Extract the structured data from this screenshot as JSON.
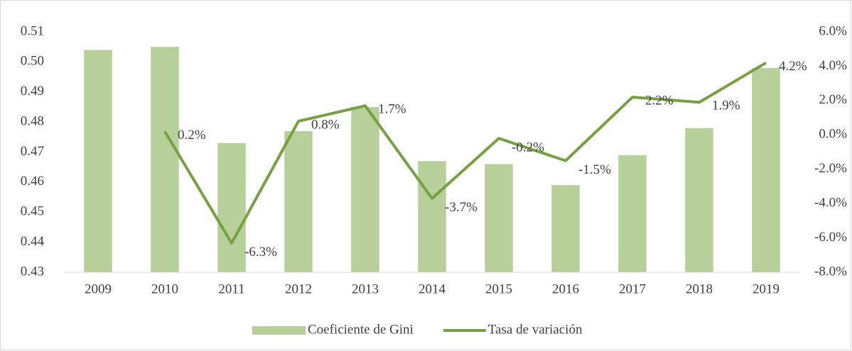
{
  "chart_data": {
    "type": "bar",
    "categories": [
      "2009",
      "2010",
      "2011",
      "2012",
      "2013",
      "2014",
      "2015",
      "2016",
      "2017",
      "2018",
      "2019"
    ],
    "series": [
      {
        "name": "Coeficiente de Gini",
        "type": "bar",
        "color": "#b7d099",
        "values": [
          0.504,
          0.505,
          0.473,
          0.477,
          0.485,
          0.467,
          0.466,
          0.459,
          0.469,
          0.478,
          0.498
        ]
      },
      {
        "name": "Tasa de variación",
        "type": "line",
        "axis": "y2",
        "color": "#77a043",
        "values": [
          null,
          0.2,
          -6.3,
          0.8,
          1.7,
          -3.7,
          -0.2,
          -1.5,
          2.2,
          1.9,
          4.2
        ],
        "value_labels": [
          null,
          "0.2%",
          "-6.3%",
          "0.8%",
          "1.7%",
          "-3.7%",
          "-0.2%",
          "-1.5%",
          "2.2%",
          "1.9%",
          "4.2%"
        ]
      }
    ],
    "ylim": [
      0.43,
      0.51
    ],
    "yticks": [
      0.43,
      0.44,
      0.45,
      0.46,
      0.47,
      0.48,
      0.49,
      {
        "value": 0.5,
        "label": "0.50"
      },
      0.51
    ],
    "y2lim": [
      -8,
      6
    ],
    "y2ticks": [
      {
        "value": -8,
        "label": "-8.0%"
      },
      {
        "value": -6,
        "label": "-6.0%"
      },
      {
        "value": -4,
        "label": "-4.0%"
      },
      {
        "value": -2,
        "label": "-2.0%"
      },
      {
        "value": 0,
        "label": "0.0%"
      },
      {
        "value": 2,
        "label": "2.0%"
      },
      {
        "value": 4,
        "label": "4.0%"
      },
      {
        "value": 6,
        "label": "6.0%"
      }
    ],
    "grid": false,
    "legend": "bottom"
  }
}
